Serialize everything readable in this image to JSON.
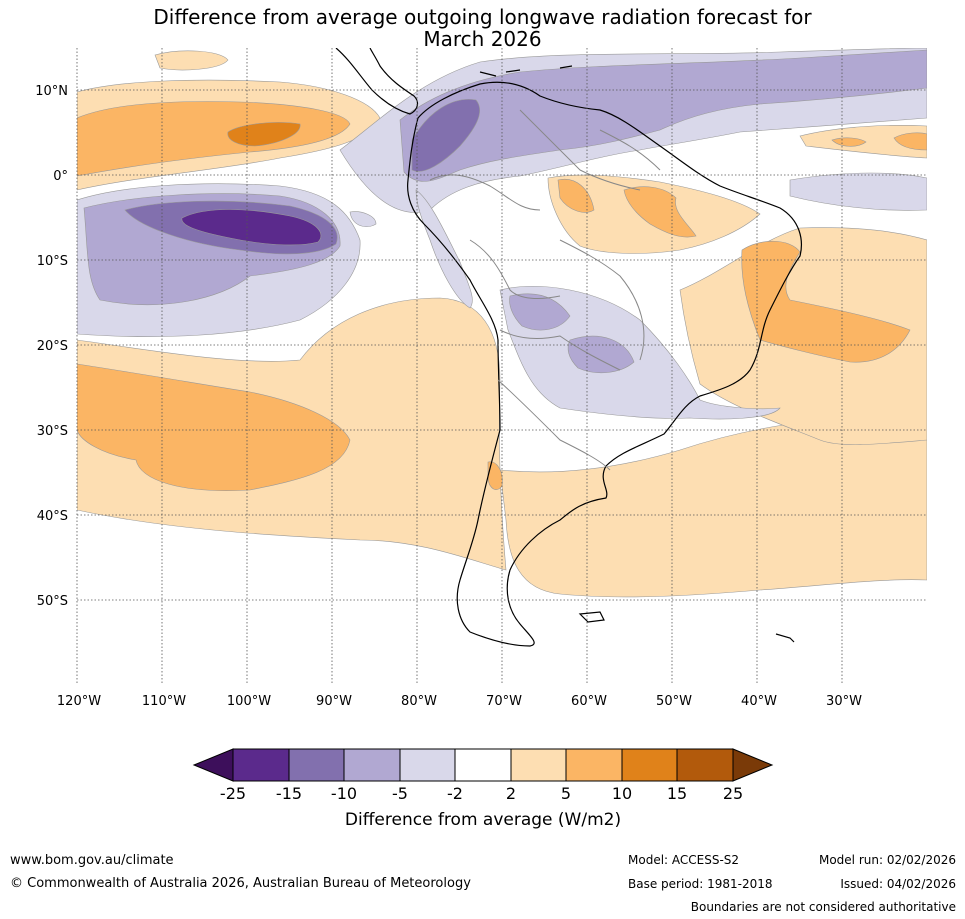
{
  "title": {
    "line1": "Difference from average outgoing longwave radiation forecast for",
    "line2": "March 2026"
  },
  "map": {
    "lat_labels": [
      "10°N",
      "0°",
      "10°S",
      "20°S",
      "30°S",
      "40°S",
      "50°S"
    ],
    "lon_labels": [
      "120°W",
      "110°W",
      "100°W",
      "90°W",
      "80°W",
      "70°W",
      "60°W",
      "50°W",
      "40°W",
      "30°W"
    ]
  },
  "colorbar": {
    "ticks": [
      "-25",
      "-15",
      "-10",
      "-5",
      "-2",
      "2",
      "5",
      "10",
      "15",
      "25"
    ],
    "label": "Difference from average (W/m2)",
    "colors": [
      "#3d0f5b",
      "#5b2a8c",
      "#8270ae",
      "#b1a8d2",
      "#d9d8ea",
      "#ffffff",
      "#fddeb2",
      "#fbb564",
      "#e0821a",
      "#b25a0c",
      "#7a3a08"
    ]
  },
  "footer": {
    "website": "www.bom.gov.au/climate",
    "copyright": "© Commonwealth of Australia 2026, Australian Bureau of Meteorology",
    "model": "Model: ACCESS-S2",
    "base_period": "Base period: 1981-2018",
    "model_run": "Model run: 02/02/2026",
    "issued": "Issued: 04/02/2026",
    "disclaimer": "Boundaries are not considered authoritative"
  }
}
